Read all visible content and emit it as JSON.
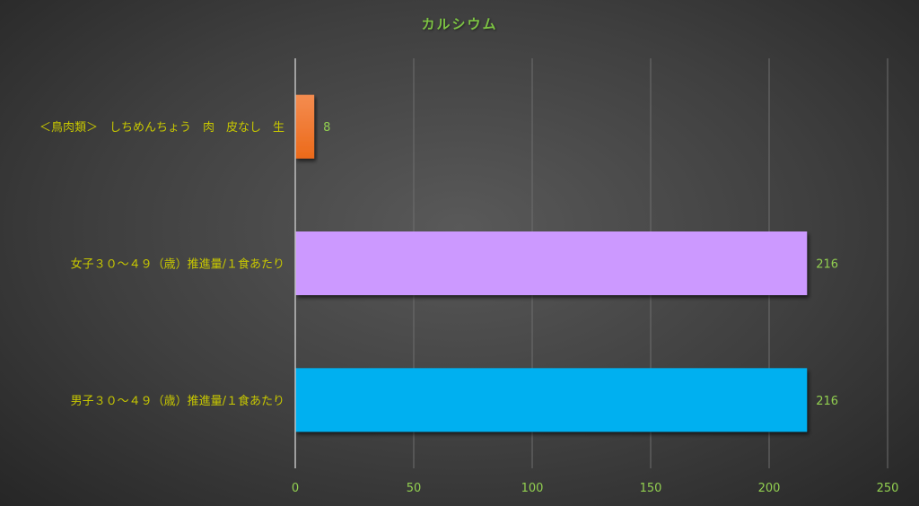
{
  "chart_data": {
    "type": "bar",
    "orientation": "horizontal",
    "title": "カルシウム",
    "categories": [
      "＜鳥肉類＞　しちめんちょう　肉　皮なし　生",
      "女子３０～４９（歳）推進量/１食あたり",
      "男子３０～４９（歳）推進量/１食あたり"
    ],
    "values": [
      8,
      216,
      216
    ],
    "data_labels": [
      "8",
      "216",
      "216"
    ],
    "colors": [
      "#f07a30",
      "#cc99ff",
      "#00b0f0"
    ],
    "xlim": [
      0,
      250
    ],
    "xticks": [
      0,
      50,
      100,
      150,
      200,
      250
    ],
    "xtick_labels": [
      "0",
      "50",
      "100",
      "150",
      "200",
      "250"
    ],
    "grid": true,
    "xlabel": "",
    "ylabel": "",
    "title_color": "#7dc443",
    "category_label_color": "#c8c800",
    "value_label_color": "#92d050"
  }
}
